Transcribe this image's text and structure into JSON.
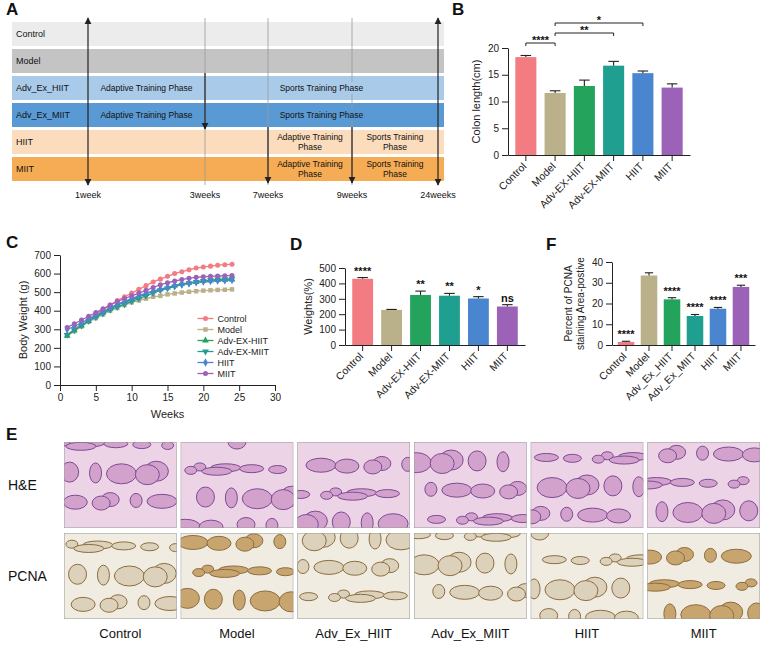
{
  "chart_data": [
    {
      "panel": "B",
      "type": "bar",
      "categories": [
        "Control",
        "Model",
        "Adv-EX-HIIT",
        "Adv-EX-MIIT",
        "HIIT",
        "MIIT"
      ],
      "values": [
        18.3,
        11.6,
        12.9,
        16.7,
        15.3,
        12.6
      ],
      "errors": [
        0.3,
        0.4,
        1.1,
        0.8,
        0.4,
        0.7
      ],
      "colors": [
        "#f27c82",
        "#bab08a",
        "#23a35c",
        "#1f9f8f",
        "#4a86cf",
        "#9c62b8"
      ],
      "y_label": "Colon length(cm)",
      "ylim": [
        0,
        20
      ],
      "yticks": [
        0,
        5,
        10,
        15,
        20
      ],
      "grid": false,
      "annotations": [
        {
          "text": "****",
          "from": "Control",
          "to": "Model"
        },
        {
          "text": "**",
          "from": "Model",
          "to": "Adv-EX-MIIT"
        },
        {
          "text": "*",
          "from": "Model",
          "to": "HIIT"
        }
      ]
    },
    {
      "panel": "C",
      "type": "line",
      "x": [
        1,
        2,
        3,
        4,
        5,
        6,
        7,
        8,
        9,
        10,
        11,
        12,
        13,
        14,
        15,
        16,
        17,
        18,
        19,
        20,
        21,
        22,
        23,
        24
      ],
      "series": [
        {
          "name": "Control",
          "color": "#f27c82",
          "marker": "circle",
          "values": [
            270,
            300,
            330,
            355,
            380,
            405,
            430,
            455,
            475,
            495,
            515,
            535,
            555,
            570,
            585,
            600,
            610,
            620,
            630,
            635,
            640,
            645,
            648,
            650
          ]
        },
        {
          "name": "Model",
          "color": "#bab08a",
          "marker": "square",
          "values": [
            265,
            290,
            315,
            340,
            360,
            380,
            400,
            415,
            430,
            445,
            455,
            465,
            475,
            480,
            488,
            493,
            498,
            502,
            505,
            508,
            510,
            512,
            513,
            515
          ]
        },
        {
          "name": "Adv-EX-HIIT",
          "color": "#23a35c",
          "marker": "triangle",
          "values": [
            265,
            295,
            320,
            345,
            370,
            390,
            410,
            430,
            445,
            460,
            475,
            490,
            505,
            515,
            525,
            535,
            545,
            550,
            555,
            560,
            562,
            565,
            566,
            568
          ]
        },
        {
          "name": "Adv-EX-MIIT",
          "color": "#1f9f8f",
          "marker": "triangle-down",
          "values": [
            270,
            295,
            320,
            345,
            365,
            385,
            405,
            420,
            435,
            450,
            465,
            480,
            495,
            510,
            520,
            530,
            540,
            548,
            555,
            560,
            565,
            568,
            570,
            572
          ]
        },
        {
          "name": "HIIT",
          "color": "#4a86cf",
          "marker": "diamond",
          "values": [
            300,
            315,
            335,
            355,
            375,
            395,
            415,
            435,
            450,
            465,
            480,
            495,
            505,
            515,
            525,
            535,
            542,
            548,
            553,
            557,
            560,
            562,
            563,
            565
          ]
        },
        {
          "name": "MIIT",
          "color": "#9c62b8",
          "marker": "circle",
          "values": [
            310,
            330,
            350,
            370,
            390,
            410,
            430,
            450,
            465,
            480,
            495,
            510,
            525,
            540,
            550,
            560,
            568,
            575,
            580,
            583,
            585,
            587,
            588,
            590
          ]
        }
      ],
      "x_label": "Weeks",
      "y_label": "Body Weight (g)",
      "xlim": [
        0,
        30
      ],
      "xticks": [
        0,
        5,
        10,
        15,
        20,
        25,
        30
      ],
      "ylim": [
        0,
        700
      ],
      "yticks": [
        0,
        100,
        200,
        300,
        400,
        500,
        600,
        700
      ],
      "legend": "lower right",
      "grid": false
    },
    {
      "panel": "D",
      "type": "bar",
      "categories": [
        "Control",
        "Model",
        "Adv-EX-HIIT",
        "Adv-EX-MIIT",
        "HIIT",
        "MIIT"
      ],
      "values": [
        430,
        228,
        325,
        320,
        302,
        250
      ],
      "errors": [
        8,
        3,
        25,
        15,
        12,
        12
      ],
      "colors": [
        "#f27c82",
        "#bab08a",
        "#23a35c",
        "#1f9f8f",
        "#4a86cf",
        "#9c62b8"
      ],
      "y_label": "Weights(%)",
      "ylim": [
        0,
        500
      ],
      "yticks": [
        0,
        100,
        200,
        300,
        400,
        500
      ],
      "grid": false,
      "annotations": [
        "****",
        null,
        "**",
        "**",
        "*",
        "ns"
      ]
    },
    {
      "panel": "F",
      "type": "bar",
      "categories": [
        "Control",
        "Model",
        "Adv_Ex_HIIT",
        "Adv_Ex_MIIT",
        "HIIT",
        "MIIT"
      ],
      "values": [
        1.5,
        33.5,
        22,
        14,
        17.5,
        28
      ],
      "errors": [
        0.3,
        1.3,
        0.8,
        0.7,
        0.6,
        0.8
      ],
      "colors": [
        "#f27c82",
        "#bab08a",
        "#23a35c",
        "#1f9f8f",
        "#4a86cf",
        "#9c62b8"
      ],
      "y_label": "Percent of PCNA staining Area-postive",
      "ylim": [
        0,
        40
      ],
      "yticks": [
        0,
        10,
        20,
        30,
        40
      ],
      "grid": false,
      "annotations": [
        "****",
        null,
        "****",
        "****",
        "****",
        "***"
      ]
    }
  ],
  "timeline": {
    "panel": "A",
    "marks": [
      "1week",
      "3weeks",
      "7weeks",
      "9weeks",
      "24weeks"
    ],
    "groups": [
      {
        "name": "Control",
        "color": "#ececec"
      },
      {
        "name": "Model",
        "color": "#c4c4c4"
      },
      {
        "name": "Adv_Ex_HIIT",
        "color": "#a9cbe9",
        "phases": [
          {
            "label": "Adaptive Training Phase",
            "from": "1week",
            "to": "3weeks"
          },
          {
            "label": "Sports Training Phase",
            "from": "3weeks",
            "to": "24weeks"
          }
        ]
      },
      {
        "name": "Adv_Ex_MIIT",
        "color": "#5a9ad4",
        "phases": [
          {
            "label": "Adaptive Training Phase",
            "from": "1week",
            "to": "3weeks"
          },
          {
            "label": "Sports Training Phase",
            "from": "3weeks",
            "to": "24weeks"
          }
        ]
      },
      {
        "name": "HIIT",
        "color": "#fbdcbc",
        "phases": [
          {
            "label": "Adaptive Training Phase",
            "from": "7weeks",
            "to": "9weeks"
          },
          {
            "label": "Sports Training Phase",
            "from": "9weeks",
            "to": "24weeks"
          }
        ]
      },
      {
        "name": "MIIT",
        "color": "#f5ac55",
        "phases": [
          {
            "label": "Adaptive Training Phase",
            "from": "7weeks",
            "to": "9weeks"
          },
          {
            "label": "Sports Training Phase",
            "from": "9weeks",
            "to": "24weeks"
          }
        ]
      }
    ]
  },
  "histology": {
    "panel": "E",
    "rows": [
      "H&E",
      "PCNA"
    ],
    "columns": [
      "Control",
      "Model",
      "Adv_Ex_HIIT",
      "Adv_Ex_MIIT",
      "HIIT",
      "MIIT"
    ]
  }
}
